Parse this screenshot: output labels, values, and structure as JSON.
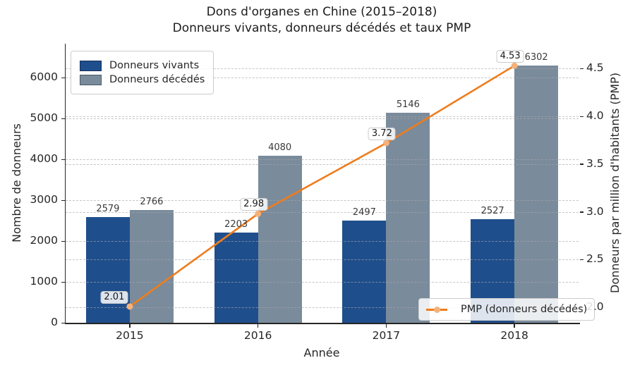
{
  "title": {
    "line1": "Dons d'organes en Chine (2015–2018)",
    "line2": "Donneurs vivants, donneurs décédés et taux PMP"
  },
  "chart_data": {
    "type": "bar",
    "categories": [
      "2015",
      "2016",
      "2017",
      "2018"
    ],
    "series": [
      {
        "name": "Donneurs vivants",
        "values": [
          2579,
          2203,
          2497,
          2527
        ],
        "color": "#1F4E8C"
      },
      {
        "name": "Donneurs décédés",
        "values": [
          2766,
          4080,
          5146,
          6302
        ],
        "color": "#7A8B9C"
      }
    ],
    "line": {
      "name": "PMP (donneurs décédés)",
      "values": [
        2.01,
        2.98,
        3.72,
        4.53
      ],
      "color": "#EE7D1D",
      "marker_color": "#F4B27A"
    },
    "xlabel": "Année",
    "ylabel_left": "Nombre de donneurs",
    "ylabel_right": "Donneurs par million d'habitants (PMP)",
    "left_ticks": [
      0,
      1000,
      2000,
      3000,
      4000,
      5000,
      6000
    ],
    "right_ticks": [
      "2.0",
      "2.5",
      "3.0",
      "3.5",
      "4.0",
      "4.5"
    ],
    "ylim_left": [
      0,
      6830
    ],
    "ylim_right": [
      1.84,
      4.76
    ],
    "grid": "dashed",
    "legend_positions": [
      "upper left",
      "lower right"
    ]
  }
}
